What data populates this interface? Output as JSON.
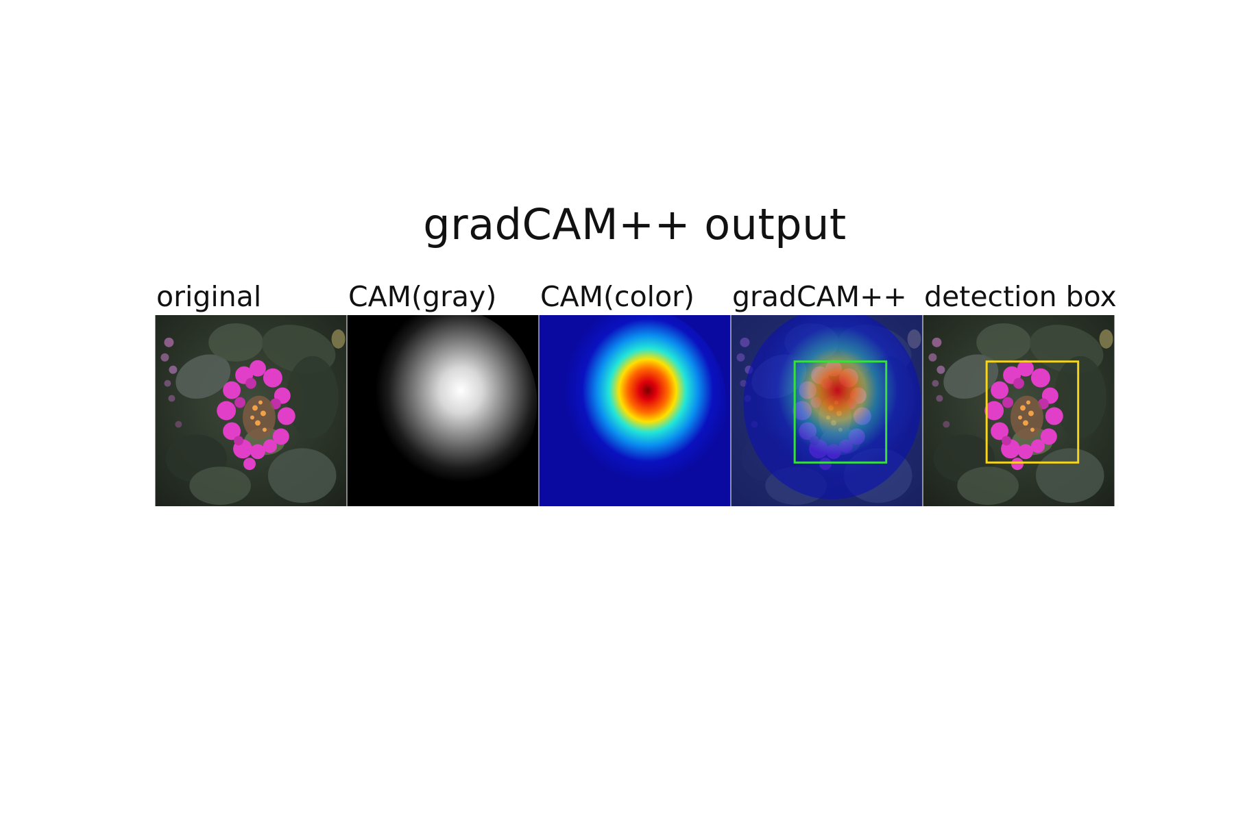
{
  "figure": {
    "title": "gradCAM++ output"
  },
  "panels": [
    {
      "label": "original"
    },
    {
      "label": "CAM(gray)"
    },
    {
      "label": "CAM(color)"
    },
    {
      "label": "gradCAM++"
    },
    {
      "label": "detection box"
    }
  ],
  "colors": {
    "background": "#ffffff",
    "flower_magenta": "#e23fc8",
    "leaf_dark_green": "#34402f",
    "jet_blue": "#0a11bf",
    "jet_red": "#e0000b",
    "box_green": "#38e13a",
    "box_yellow": "#f6d51b"
  }
}
